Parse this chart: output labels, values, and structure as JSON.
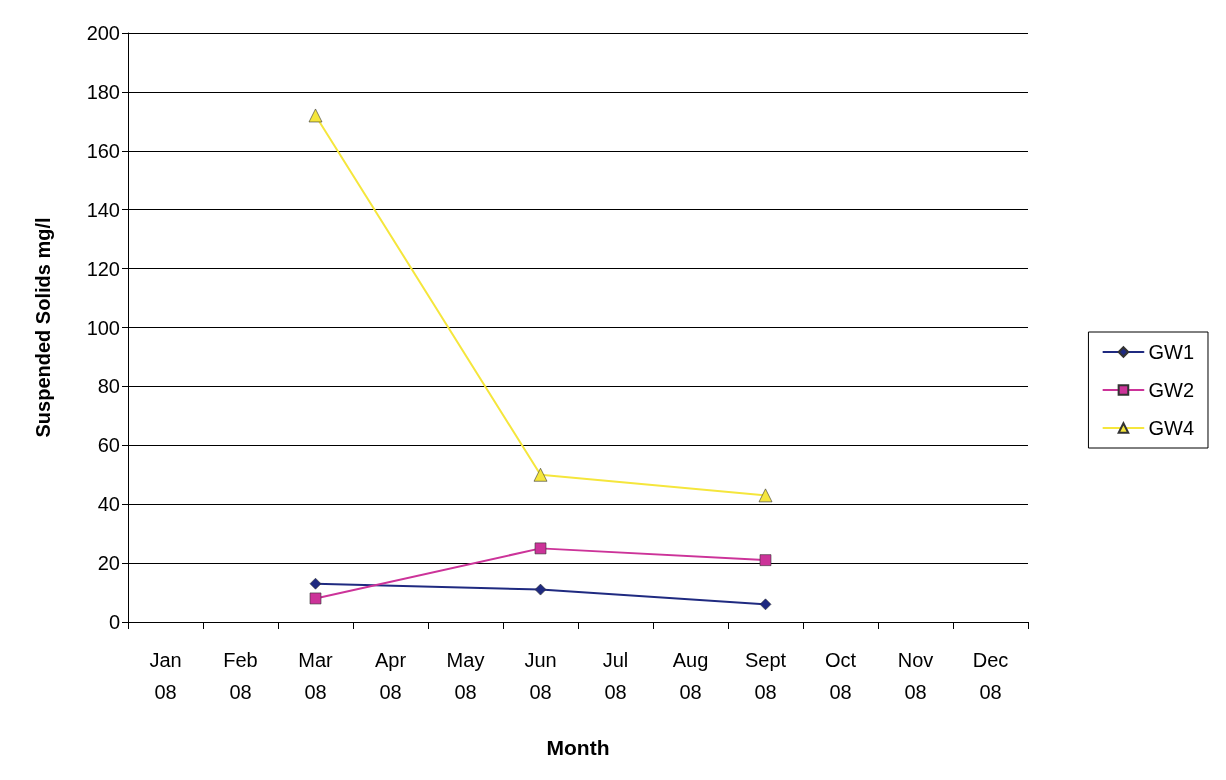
{
  "chart_data": {
    "type": "line",
    "xlabel": "Month",
    "ylabel": "Suspended Solids mg/l",
    "categories": [
      "Jan 08",
      "Feb 08",
      "Mar 08",
      "Apr 08",
      "May 08",
      "Jun 08",
      "Jul 08",
      "Aug 08",
      "Sept 08",
      "Oct 08",
      "Nov 08",
      "Dec 08"
    ],
    "series": [
      {
        "name": "GW1",
        "color": "#1f2a80",
        "marker": "diamond",
        "values": [
          null,
          null,
          13,
          null,
          null,
          11,
          null,
          null,
          6,
          null,
          null,
          null
        ]
      },
      {
        "name": "GW2",
        "color": "#cc3399",
        "marker": "square",
        "values": [
          null,
          null,
          8,
          null,
          null,
          25,
          null,
          null,
          21,
          null,
          null,
          null
        ]
      },
      {
        "name": "GW4",
        "color": "#f5e63c",
        "marker": "triangle",
        "values": [
          null,
          null,
          172,
          null,
          null,
          50,
          null,
          null,
          43,
          null,
          null,
          null
        ]
      }
    ],
    "ylim": [
      0,
      200
    ],
    "yticks": [
      0,
      20,
      40,
      60,
      80,
      100,
      120,
      140,
      160,
      180,
      200
    ],
    "grid": "y",
    "legend": "right",
    "line_style": "solid"
  }
}
